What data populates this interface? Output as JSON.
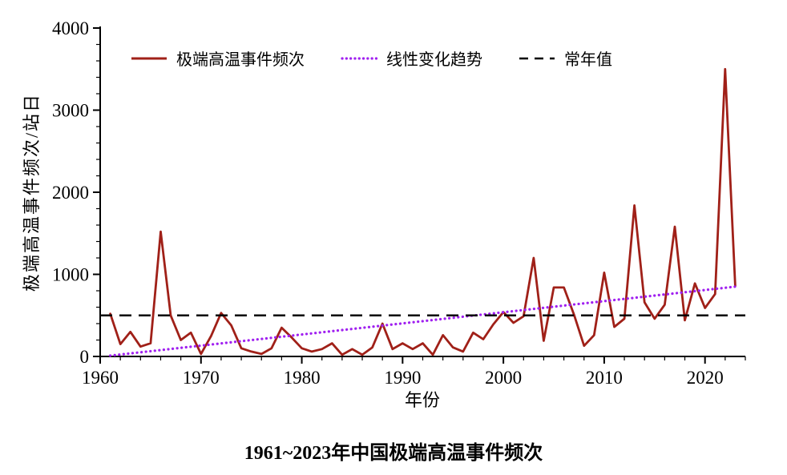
{
  "chart_data": {
    "type": "line",
    "title": "1961~2023年中国极端高温事件频次",
    "xlabel": "年份",
    "ylabel": "极端高温事件频次/站日",
    "xlim": [
      1960,
      2024
    ],
    "ylim": [
      0,
      4000
    ],
    "xticks": [
      1960,
      1970,
      1980,
      1990,
      2000,
      2010,
      2020
    ],
    "yticks": [
      0,
      1000,
      2000,
      3000,
      4000
    ],
    "x_minor_step": 2,
    "y_minor_step": 200,
    "grid": false,
    "legend_position": "top-inside",
    "x": [
      1961,
      1962,
      1963,
      1964,
      1965,
      1966,
      1967,
      1968,
      1969,
      1970,
      1971,
      1972,
      1973,
      1974,
      1975,
      1976,
      1977,
      1978,
      1979,
      1980,
      1981,
      1982,
      1983,
      1984,
      1985,
      1986,
      1987,
      1988,
      1989,
      1990,
      1991,
      1992,
      1993,
      1994,
      1995,
      1996,
      1997,
      1998,
      1999,
      2000,
      2001,
      2002,
      2003,
      2004,
      2005,
      2006,
      2007,
      2008,
      2009,
      2010,
      2011,
      2012,
      2013,
      2014,
      2015,
      2016,
      2017,
      2018,
      2019,
      2020,
      2021,
      2022,
      2023
    ],
    "series": [
      {
        "name": "极端高温事件频次",
        "type": "line",
        "line_style": "solid",
        "color": "#a02018",
        "values": [
          520,
          150,
          300,
          120,
          160,
          1520,
          500,
          200,
          290,
          30,
          250,
          530,
          380,
          100,
          60,
          30,
          100,
          350,
          230,
          100,
          60,
          90,
          160,
          20,
          90,
          20,
          110,
          400,
          90,
          160,
          90,
          160,
          20,
          260,
          110,
          60,
          290,
          210,
          390,
          540,
          410,
          490,
          1200,
          190,
          840,
          840,
          510,
          130,
          260,
          1020,
          360,
          460,
          1840,
          660,
          460,
          630,
          1580,
          440,
          890,
          590,
          760,
          3500,
          860
        ]
      },
      {
        "name": "线性变化趋势",
        "type": "trend",
        "line_style": "dotted",
        "color": "#a020f0",
        "x_range": [
          1961,
          2023
        ],
        "values_endpoints": [
          10,
          850
        ]
      },
      {
        "name": "常年值",
        "type": "constant",
        "line_style": "dashed",
        "color": "#000000",
        "value": 500
      }
    ]
  }
}
